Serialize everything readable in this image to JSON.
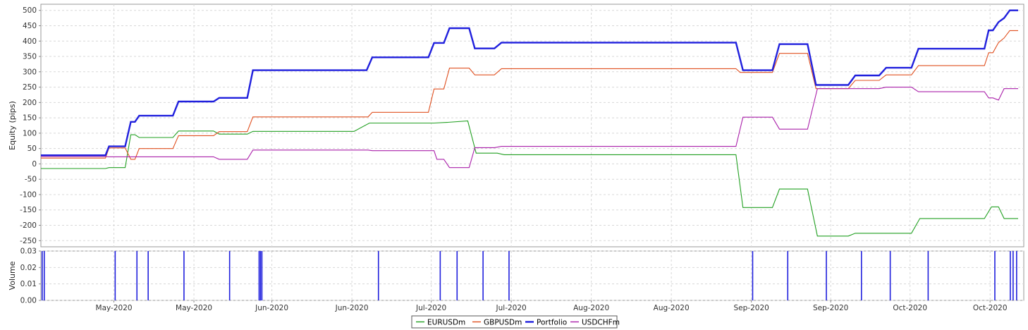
{
  "chart_data": [
    {
      "type": "line",
      "ylabel": "Equity (pips)",
      "ylim": [
        -270,
        520
      ],
      "yticks": [
        500,
        450,
        400,
        350,
        300,
        250,
        200,
        150,
        100,
        50,
        0,
        -50,
        -100,
        -150,
        -200,
        -250
      ],
      "x_domain": [
        0,
        1400
      ],
      "x_tick_positions": [
        104,
        218,
        329,
        443,
        556,
        670,
        784,
        898,
        1012,
        1125,
        1238,
        1352
      ],
      "x_tick_labels": [
        "May-2020",
        "May-2020",
        "Jun-2020",
        "Jun-2020",
        "Jul-2020",
        "Jul-2020",
        "Aug-2020",
        "Aug-2020",
        "Sep-2020",
        "Sep-2020",
        "Oct-2020",
        "Oct-2020"
      ],
      "grid": true,
      "series": [
        {
          "name": "EURUSDm",
          "color": "#22a022",
          "points": [
            [
              0,
              -15
            ],
            [
              92,
              -15
            ],
            [
              97,
              -12
            ],
            [
              120,
              -12
            ],
            [
              128,
              95
            ],
            [
              134,
              95
            ],
            [
              140,
              86
            ],
            [
              188,
              86
            ],
            [
              196,
              107
            ],
            [
              246,
              107
            ],
            [
              254,
              97
            ],
            [
              294,
              97
            ],
            [
              302,
              106
            ],
            [
              446,
              106
            ],
            [
              468,
              133
            ],
            [
              560,
              133
            ],
            [
              578,
              135
            ],
            [
              608,
              140
            ],
            [
              620,
              35
            ],
            [
              650,
              35
            ],
            [
              660,
              30
            ],
            [
              990,
              30
            ],
            [
              1000,
              -142
            ],
            [
              1042,
              -142
            ],
            [
              1052,
              -82
            ],
            [
              1092,
              -82
            ],
            [
              1106,
              -235
            ],
            [
              1150,
              -235
            ],
            [
              1160,
              -226
            ],
            [
              1240,
              -226
            ],
            [
              1252,
              -178
            ],
            [
              1344,
              -178
            ],
            [
              1354,
              -140
            ],
            [
              1364,
              -140
            ],
            [
              1372,
              -178
            ],
            [
              1392,
              -178
            ]
          ]
        },
        {
          "name": "GBPUSDm",
          "color": "#e05020",
          "points": [
            [
              0,
              19
            ],
            [
              92,
              19
            ],
            [
              97,
              52
            ],
            [
              120,
              52
            ],
            [
              128,
              15
            ],
            [
              134,
              15
            ],
            [
              140,
              50
            ],
            [
              188,
              50
            ],
            [
              196,
              92
            ],
            [
              246,
              92
            ],
            [
              254,
              105
            ],
            [
              294,
              105
            ],
            [
              302,
              153
            ],
            [
              466,
              153
            ],
            [
              472,
              168
            ],
            [
              552,
              168
            ],
            [
              560,
              244
            ],
            [
              574,
              244
            ],
            [
              582,
              312
            ],
            [
              610,
              312
            ],
            [
              618,
              290
            ],
            [
              646,
              290
            ],
            [
              656,
              310
            ],
            [
              990,
              310
            ],
            [
              996,
              298
            ],
            [
              1042,
              298
            ],
            [
              1052,
              360
            ],
            [
              1092,
              360
            ],
            [
              1104,
              245
            ],
            [
              1150,
              245
            ],
            [
              1160,
              272
            ],
            [
              1194,
              272
            ],
            [
              1204,
              290
            ],
            [
              1240,
              290
            ],
            [
              1250,
              320
            ],
            [
              1344,
              320
            ],
            [
              1350,
              362
            ],
            [
              1356,
              362
            ],
            [
              1364,
              395
            ],
            [
              1372,
              410
            ],
            [
              1380,
              434
            ],
            [
              1392,
              434
            ]
          ]
        },
        {
          "name": "Portfolio",
          "color": "#2020dd",
          "bold": true,
          "points": [
            [
              0,
              28
            ],
            [
              92,
              28
            ],
            [
              97,
              57
            ],
            [
              120,
              57
            ],
            [
              128,
              137
            ],
            [
              134,
              137
            ],
            [
              140,
              157
            ],
            [
              188,
              157
            ],
            [
              196,
              203
            ],
            [
              246,
              203
            ],
            [
              254,
              215
            ],
            [
              294,
              215
            ],
            [
              302,
              305
            ],
            [
              464,
              305
            ],
            [
              472,
              347
            ],
            [
              552,
              347
            ],
            [
              560,
              394
            ],
            [
              574,
              394
            ],
            [
              582,
              442
            ],
            [
              610,
              442
            ],
            [
              618,
              376
            ],
            [
              646,
              376
            ],
            [
              656,
              395
            ],
            [
              990,
              395
            ],
            [
              1000,
              305
            ],
            [
              1042,
              305
            ],
            [
              1052,
              390
            ],
            [
              1092,
              390
            ],
            [
              1104,
              257
            ],
            [
              1150,
              257
            ],
            [
              1160,
              288
            ],
            [
              1194,
              288
            ],
            [
              1204,
              313
            ],
            [
              1240,
              313
            ],
            [
              1250,
              375
            ],
            [
              1344,
              375
            ],
            [
              1350,
              435
            ],
            [
              1356,
              435
            ],
            [
              1364,
              462
            ],
            [
              1372,
              475
            ],
            [
              1380,
              500
            ],
            [
              1392,
              500
            ]
          ]
        },
        {
          "name": "USDCHFm",
          "color": "#aa20aa",
          "points": [
            [
              0,
              24
            ],
            [
              92,
              24
            ],
            [
              97,
              23
            ],
            [
              246,
              23
            ],
            [
              254,
              15
            ],
            [
              294,
              15
            ],
            [
              302,
              45
            ],
            [
              466,
              45
            ],
            [
              472,
              43
            ],
            [
              560,
              43
            ],
            [
              564,
              15
            ],
            [
              574,
              15
            ],
            [
              582,
              -12
            ],
            [
              610,
              -12
            ],
            [
              618,
              53
            ],
            [
              646,
              53
            ],
            [
              656,
              57
            ],
            [
              990,
              57
            ],
            [
              1000,
              152
            ],
            [
              1042,
              152
            ],
            [
              1052,
              113
            ],
            [
              1092,
              113
            ],
            [
              1106,
              245
            ],
            [
              1150,
              245
            ],
            [
              1160,
              245
            ],
            [
              1194,
              245
            ],
            [
              1204,
              250
            ],
            [
              1240,
              250
            ],
            [
              1250,
              235
            ],
            [
              1344,
              235
            ],
            [
              1350,
              215
            ],
            [
              1356,
              215
            ],
            [
              1364,
              208
            ],
            [
              1372,
              245
            ],
            [
              1392,
              245
            ]
          ]
        }
      ]
    },
    {
      "type": "bar",
      "ylabel": "Volume",
      "ylim": [
        0,
        0.03
      ],
      "yticks": [
        "0.03",
        "0.02",
        "0.01",
        "0.00"
      ],
      "ytick_values": [
        0.03,
        0.02,
        0.01,
        0
      ],
      "grid": true,
      "color": "#2020dd",
      "bars": [
        {
          "x": 0,
          "value": 0.03
        },
        {
          "x": 3,
          "value": 0.03
        },
        {
          "x": 104,
          "value": 0.03
        },
        {
          "x": 135,
          "value": 0.03
        },
        {
          "x": 151,
          "value": 0.03
        },
        {
          "x": 202,
          "value": 0.03
        },
        {
          "x": 267,
          "value": 0.03
        },
        {
          "x": 309,
          "value": 0.03
        },
        {
          "x": 311,
          "value": 0.03
        },
        {
          "x": 313,
          "value": 0.03
        },
        {
          "x": 479,
          "value": 0.03
        },
        {
          "x": 567,
          "value": 0.03
        },
        {
          "x": 591,
          "value": 0.03
        },
        {
          "x": 628,
          "value": 0.03
        },
        {
          "x": 665,
          "value": 0.03
        },
        {
          "x": 1012,
          "value": 0.03
        },
        {
          "x": 1062,
          "value": 0.03
        },
        {
          "x": 1117,
          "value": 0.03
        },
        {
          "x": 1167,
          "value": 0.03
        },
        {
          "x": 1208,
          "value": 0.03
        },
        {
          "x": 1262,
          "value": 0.03
        },
        {
          "x": 1357,
          "value": 0.03
        },
        {
          "x": 1379,
          "value": 0.03
        },
        {
          "x": 1383,
          "value": 0.03
        },
        {
          "x": 1388,
          "value": 0.03
        }
      ]
    }
  ],
  "legend": {
    "items": [
      {
        "label": "EURUSDm",
        "color": "#22a022"
      },
      {
        "label": "GBPUSDm",
        "color": "#e05020"
      },
      {
        "label": "Portfolio",
        "color": "#2020dd"
      },
      {
        "label": "USDCHFm",
        "color": "#aa20aa"
      }
    ]
  }
}
